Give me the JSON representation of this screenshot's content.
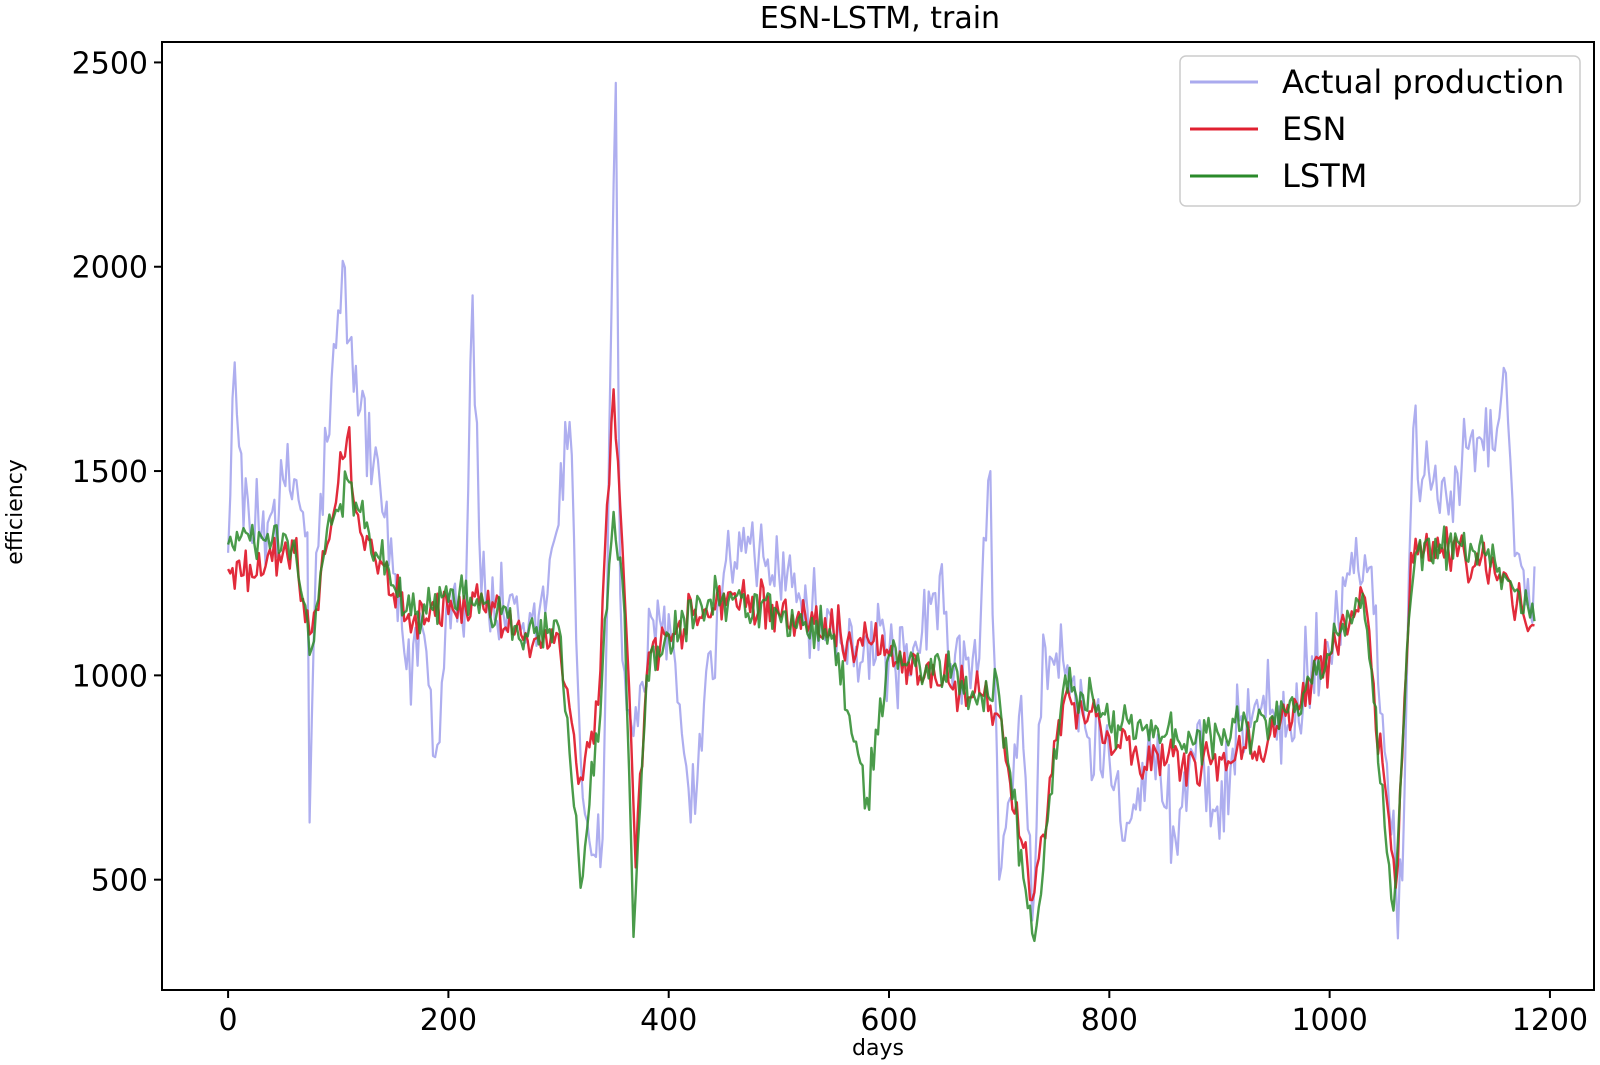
{
  "chart_data": {
    "type": "line",
    "title": "ESN-LSTM, train",
    "xlabel": "days",
    "ylabel": "efficiency",
    "xlim": [
      -60,
      1240
    ],
    "ylim": [
      230,
      2550
    ],
    "xticks": [
      0,
      200,
      400,
      600,
      800,
      1000,
      1200
    ],
    "yticks": [
      500,
      1000,
      1500,
      2000,
      2500
    ],
    "xtick_labels": [
      "0",
      "200",
      "400",
      "600",
      "800",
      "1000",
      "1200"
    ],
    "ytick_labels": [
      "500",
      "1000",
      "1500",
      "2000",
      "2500"
    ],
    "grid": false,
    "legend_position": "top-right",
    "x_range": [
      0,
      1187
    ],
    "series": [
      {
        "name": "Actual production",
        "color": "#aaaaee",
        "keypoints": [
          [
            0,
            1300
          ],
          [
            5,
            1760
          ],
          [
            10,
            1560
          ],
          [
            20,
            1350
          ],
          [
            40,
            1400
          ],
          [
            60,
            1480
          ],
          [
            72,
            1350
          ],
          [
            74,
            640
          ],
          [
            80,
            1300
          ],
          [
            95,
            1700
          ],
          [
            105,
            2010
          ],
          [
            110,
            1820
          ],
          [
            120,
            1650
          ],
          [
            135,
            1500
          ],
          [
            150,
            1250
          ],
          [
            155,
            1120
          ],
          [
            165,
            1000
          ],
          [
            175,
            1150
          ],
          [
            190,
            830
          ],
          [
            200,
            1200
          ],
          [
            215,
            1150
          ],
          [
            222,
            1930
          ],
          [
            230,
            1200
          ],
          [
            250,
            1150
          ],
          [
            270,
            1080
          ],
          [
            290,
            1200
          ],
          [
            310,
            1620
          ],
          [
            320,
            800
          ],
          [
            330,
            560
          ],
          [
            340,
            600
          ],
          [
            348,
            1880
          ],
          [
            352,
            2450
          ],
          [
            356,
            1200
          ],
          [
            365,
            800
          ],
          [
            375,
            1000
          ],
          [
            400,
            1150
          ],
          [
            420,
            640
          ],
          [
            450,
            1250
          ],
          [
            470,
            1300
          ],
          [
            500,
            1250
          ],
          [
            520,
            1180
          ],
          [
            540,
            1100
          ],
          [
            560,
            1050
          ],
          [
            580,
            1100
          ],
          [
            600,
            1050
          ],
          [
            620,
            1000
          ],
          [
            640,
            1200
          ],
          [
            660,
            1050
          ],
          [
            680,
            1000
          ],
          [
            692,
            1500
          ],
          [
            700,
            500
          ],
          [
            710,
            700
          ],
          [
            720,
            950
          ],
          [
            730,
            400
          ],
          [
            740,
            1100
          ],
          [
            760,
            1000
          ],
          [
            780,
            850
          ],
          [
            800,
            800
          ],
          [
            820,
            650
          ],
          [
            840,
            820
          ],
          [
            860,
            600
          ],
          [
            880,
            880
          ],
          [
            900,
            600
          ],
          [
            920,
            900
          ],
          [
            940,
            950
          ],
          [
            960,
            850
          ],
          [
            980,
            1000
          ],
          [
            1000,
            1050
          ],
          [
            1020,
            1300
          ],
          [
            1040,
            1150
          ],
          [
            1060,
            500
          ],
          [
            1065,
            450
          ],
          [
            1075,
            1550
          ],
          [
            1090,
            1500
          ],
          [
            1110,
            1450
          ],
          [
            1130,
            1600
          ],
          [
            1150,
            1550
          ],
          [
            1160,
            1740
          ],
          [
            1170,
            1300
          ],
          [
            1187,
            1150
          ]
        ]
      },
      {
        "name": "ESN",
        "color": "#e02030",
        "keypoints": [
          [
            0,
            1260
          ],
          [
            20,
            1270
          ],
          [
            40,
            1280
          ],
          [
            60,
            1300
          ],
          [
            74,
            1100
          ],
          [
            90,
            1320
          ],
          [
            108,
            1580
          ],
          [
            120,
            1350
          ],
          [
            150,
            1200
          ],
          [
            170,
            1150
          ],
          [
            200,
            1150
          ],
          [
            230,
            1200
          ],
          [
            260,
            1100
          ],
          [
            300,
            1100
          ],
          [
            320,
            750
          ],
          [
            335,
            900
          ],
          [
            350,
            1700
          ],
          [
            360,
            1200
          ],
          [
            370,
            530
          ],
          [
            380,
            1000
          ],
          [
            400,
            1100
          ],
          [
            450,
            1200
          ],
          [
            500,
            1150
          ],
          [
            550,
            1100
          ],
          [
            600,
            1050
          ],
          [
            650,
            1000
          ],
          [
            700,
            900
          ],
          [
            730,
            450
          ],
          [
            760,
            950
          ],
          [
            800,
            850
          ],
          [
            850,
            780
          ],
          [
            900,
            800
          ],
          [
            950,
            850
          ],
          [
            1000,
            1050
          ],
          [
            1030,
            1200
          ],
          [
            1060,
            480
          ],
          [
            1075,
            1300
          ],
          [
            1100,
            1300
          ],
          [
            1150,
            1250
          ],
          [
            1187,
            1100
          ]
        ]
      },
      {
        "name": "LSTM",
        "color": "#2a8a2a",
        "keypoints": [
          [
            0,
            1320
          ],
          [
            20,
            1330
          ],
          [
            40,
            1330
          ],
          [
            60,
            1330
          ],
          [
            74,
            1050
          ],
          [
            90,
            1360
          ],
          [
            108,
            1480
          ],
          [
            120,
            1400
          ],
          [
            150,
            1220
          ],
          [
            170,
            1150
          ],
          [
            200,
            1180
          ],
          [
            230,
            1200
          ],
          [
            260,
            1120
          ],
          [
            300,
            1120
          ],
          [
            320,
            480
          ],
          [
            335,
            850
          ],
          [
            350,
            1400
          ],
          [
            360,
            1150
          ],
          [
            368,
            360
          ],
          [
            380,
            1000
          ],
          [
            400,
            1100
          ],
          [
            450,
            1200
          ],
          [
            500,
            1150
          ],
          [
            550,
            1100
          ],
          [
            580,
            700
          ],
          [
            600,
            1050
          ],
          [
            650,
            1000
          ],
          [
            700,
            950
          ],
          [
            731,
            340
          ],
          [
            760,
            1000
          ],
          [
            800,
            880
          ],
          [
            850,
            850
          ],
          [
            900,
            850
          ],
          [
            950,
            880
          ],
          [
            1000,
            1050
          ],
          [
            1030,
            1200
          ],
          [
            1059,
            400
          ],
          [
            1075,
            1300
          ],
          [
            1100,
            1320
          ],
          [
            1150,
            1280
          ],
          [
            1187,
            1150
          ]
        ]
      }
    ]
  }
}
